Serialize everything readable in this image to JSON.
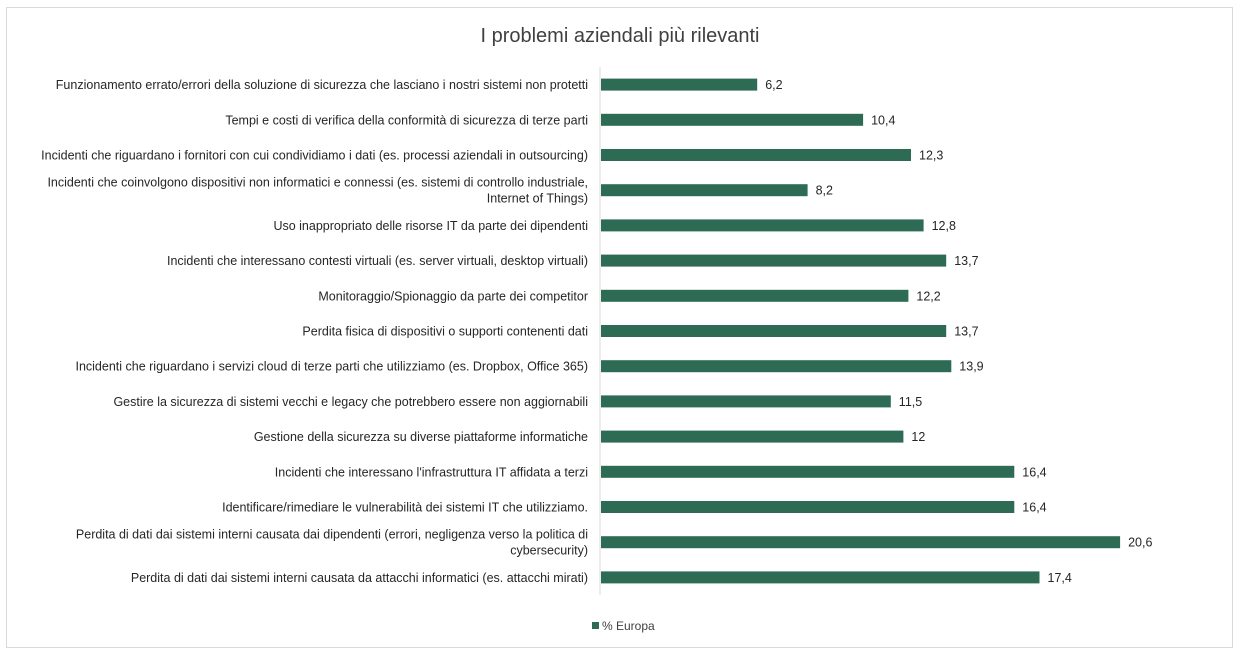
{
  "chart_data": {
    "type": "bar",
    "orientation": "horizontal",
    "title": "I problemi aziendali più rilevanti",
    "categories": [
      [
        "Funzionamento errato/errori della soluzione di sicurezza che lasciano i nostri sistemi non protetti"
      ],
      [
        "Tempi e costi di verifica della conformità di sicurezza di terze parti"
      ],
      [
        "Incidenti che riguardano i fornitori con cui condividiamo i dati (es. processi aziendali in outsourcing)"
      ],
      [
        "Incidenti che coinvolgono dispositivi non informatici e connessi (es. sistemi di controllo industriale,",
        "Internet of Things)"
      ],
      [
        "Uso inappropriato delle risorse IT da parte dei dipendenti"
      ],
      [
        "Incidenti che interessano contesti virtuali (es. server virtuali, desktop virtuali)"
      ],
      [
        "Monitoraggio/Spionaggio da parte dei competitor"
      ],
      [
        "Perdita fisica di dispositivi o supporti contenenti dati"
      ],
      [
        "Incidenti che riguardano i servizi cloud di terze parti che utilizziamo (es. Dropbox, Office 365)"
      ],
      [
        "Gestire la sicurezza di sistemi vecchi e legacy che potrebbero essere non aggiornabili"
      ],
      [
        "Gestione della sicurezza su diverse piattaforme informatiche"
      ],
      [
        "Incidenti che interessano l'infrastruttura IT affidata a terzi"
      ],
      [
        "Identificare/rimediare le vulnerabilità dei sistemi IT che utilizziamo."
      ],
      [
        "Perdita di dati dai sistemi interni causata dai dipendenti (errori, negligenza verso la politica di",
        "cybersecurity)"
      ],
      [
        "Perdita di dati dai sistemi interni causata da attacchi informatici (es. attacchi mirati)"
      ]
    ],
    "series": [
      {
        "name": "% Europa",
        "values": [
          6.2,
          10.4,
          12.3,
          8.2,
          12.8,
          13.7,
          12.2,
          13.7,
          13.9,
          11.5,
          12,
          16.4,
          16.4,
          20.6,
          17.4
        ],
        "labels": [
          "6,2",
          "10,4",
          "12,3",
          "8,2",
          "12,8",
          "13,7",
          "12,2",
          "13,7",
          "13,9",
          "11,5",
          "12",
          "16,4",
          "16,4",
          "20,6",
          "17,4"
        ],
        "color": "#2e6b55"
      }
    ],
    "xlim": [
      0,
      22.5
    ],
    "grid": false,
    "legend": "bottom"
  },
  "colors": {
    "bar": "#2e6b55",
    "axis": "#d9d9d9",
    "border": "#d9d9d9"
  }
}
